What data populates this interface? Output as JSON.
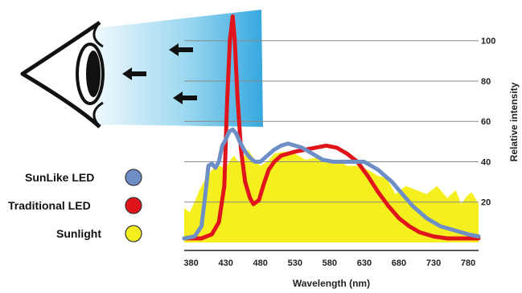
{
  "chart_data": {
    "type": "area",
    "title": "",
    "xlabel": "Wavelength (nm)",
    "ylabel": "Relative intensity",
    "xlim": [
      370,
      795
    ],
    "ylim": [
      0,
      115
    ],
    "x_ticks": [
      380,
      430,
      480,
      530,
      580,
      630,
      680,
      730,
      780
    ],
    "y_ticks": [
      20,
      40,
      60,
      80,
      100
    ],
    "grid": "horizontal",
    "legend_position": "left",
    "legend": [
      {
        "label": "SunLike LED",
        "color": "#6e8fc6"
      },
      {
        "label": "Traditional LED",
        "color": "#e0151c"
      },
      {
        "label": "Sunlight",
        "color": "#f6ef1f"
      }
    ],
    "series": [
      {
        "name": "Sunlight",
        "style": "area",
        "color": "#f6ef1f",
        "x": [
          370,
          378,
          385,
          392,
          400,
          410,
          420,
          430,
          437,
          442,
          448,
          455,
          462,
          470,
          480,
          490,
          500,
          515,
          530,
          545,
          560,
          575,
          590,
          605,
          620,
          635,
          650,
          662,
          675,
          690,
          705,
          720,
          735,
          750,
          762,
          770,
          778,
          785,
          795
        ],
        "values": [
          17,
          15,
          20,
          26,
          31,
          36,
          38,
          37,
          41,
          43,
          40,
          42,
          46,
          42,
          38,
          40,
          44,
          45,
          44,
          41,
          42,
          40,
          41,
          38,
          38,
          36,
          33,
          32,
          24,
          28,
          26,
          24,
          28,
          22,
          26,
          19,
          23,
          25,
          19
        ]
      },
      {
        "name": "Traditional LED",
        "style": "line",
        "color": "#e0151c",
        "x": [
          370,
          395,
          410,
          420,
          428,
          432,
          436,
          440,
          443,
          447,
          452,
          458,
          465,
          470,
          478,
          485,
          492,
          500,
          510,
          520,
          530,
          545,
          560,
          575,
          590,
          605,
          620,
          635,
          650,
          665,
          680,
          695,
          710,
          730,
          750,
          770,
          795
        ],
        "values": [
          2,
          2,
          4,
          10,
          28,
          70,
          100,
          112,
          100,
          72,
          46,
          30,
          22,
          19,
          21,
          29,
          36,
          40,
          43,
          44,
          45,
          46,
          47,
          48,
          47,
          44,
          40,
          33,
          25,
          18,
          12,
          8,
          5,
          3,
          2,
          2,
          2
        ]
      },
      {
        "name": "SunLike LED",
        "style": "line",
        "color": "#6e8fc6",
        "x": [
          370,
          385,
          395,
          400,
          405,
          410,
          415,
          420,
          425,
          430,
          435,
          440,
          445,
          450,
          458,
          465,
          472,
          480,
          490,
          500,
          510,
          520,
          530,
          540,
          555,
          570,
          585,
          600,
          615,
          630,
          640,
          650,
          660,
          670,
          680,
          690,
          700,
          720,
          740,
          760,
          780,
          795
        ],
        "values": [
          2,
          3,
          8,
          22,
          38,
          39,
          37,
          40,
          48,
          51,
          55,
          56,
          54,
          50,
          45,
          42,
          40,
          40,
          43,
          46,
          48,
          49,
          48,
          47,
          44,
          41,
          40,
          40,
          40,
          40,
          38,
          36,
          33,
          30,
          26,
          22,
          18,
          12,
          8,
          6,
          4,
          3
        ]
      }
    ]
  }
}
